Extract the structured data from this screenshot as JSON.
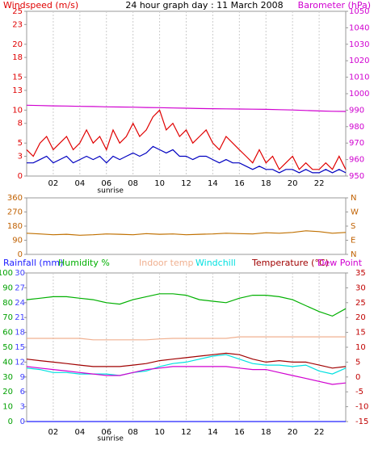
{
  "chart_data": [
    {
      "type": "line",
      "title": "24 hour graph day : 11 March 2008",
      "ylabel": "Windspeed (m/s)",
      "y2label": "Barometer (hPa)",
      "annotation": "sunrise",
      "ycolor": "#e00000",
      "y2color": "#d000d0",
      "xlim": [
        0,
        24
      ],
      "xticks": [
        {
          "value": 2,
          "label": "02"
        },
        {
          "value": 4,
          "label": "04"
        },
        {
          "value": 6,
          "label": "06"
        },
        {
          "value": 8,
          "label": "08"
        },
        {
          "value": 10,
          "label": "10"
        },
        {
          "value": 12,
          "label": "12"
        },
        {
          "value": 14,
          "label": "14"
        },
        {
          "value": 16,
          "label": "16"
        },
        {
          "value": 18,
          "label": "18"
        },
        {
          "value": 20,
          "label": "20"
        },
        {
          "value": 22,
          "label": "22"
        }
      ],
      "ylim": [
        0,
        25
      ],
      "yticks": [
        0,
        3,
        5,
        8,
        10,
        13,
        15,
        18,
        20,
        23,
        25
      ],
      "y2lim": [
        950,
        1050
      ],
      "y2ticks": [
        950,
        960,
        970,
        980,
        990,
        1000,
        1010,
        1020,
        1030,
        1040,
        1050
      ],
      "grid": true,
      "series": [
        {
          "color": "#e00000",
          "x": [
            0,
            0.5,
            1,
            1.5,
            2,
            2.5,
            3,
            3.5,
            4,
            4.5,
            5,
            5.5,
            6,
            6.5,
            7,
            7.5,
            8,
            8.5,
            9,
            9.5,
            10,
            10.5,
            11,
            11.5,
            12,
            12.5,
            13,
            13.5,
            14,
            14.5,
            15,
            15.5,
            16,
            16.5,
            17,
            17.5,
            18,
            18.5,
            19,
            19.5,
            20,
            20.5,
            21,
            21.5,
            22,
            22.5,
            23,
            23.5,
            24
          ],
          "values": [
            4,
            3,
            5,
            6,
            4,
            5,
            6,
            4,
            5,
            7,
            5,
            6,
            4,
            7,
            5,
            6,
            8,
            6,
            7,
            9,
            10,
            7,
            8,
            6,
            7,
            5,
            6,
            7,
            5,
            4,
            6,
            5,
            4,
            3,
            2,
            4,
            2,
            3,
            1,
            2,
            3,
            1,
            2,
            1,
            1,
            2,
            1,
            3,
            1
          ]
        },
        {
          "color": "#0000c0",
          "x": [
            0,
            0.5,
            1,
            1.5,
            2,
            2.5,
            3,
            3.5,
            4,
            4.5,
            5,
            5.5,
            6,
            6.5,
            7,
            7.5,
            8,
            8.5,
            9,
            9.5,
            10,
            10.5,
            11,
            11.5,
            12,
            12.5,
            13,
            13.5,
            14,
            14.5,
            15,
            15.5,
            16,
            16.5,
            17,
            17.5,
            18,
            18.5,
            19,
            19.5,
            20,
            20.5,
            21,
            21.5,
            22,
            22.5,
            23,
            23.5,
            24
          ],
          "values": [
            2,
            2,
            2.5,
            3,
            2,
            2.5,
            3,
            2,
            2.5,
            3,
            2.5,
            3,
            2,
            3,
            2.5,
            3,
            3.5,
            3,
            3.5,
            4.5,
            4,
            3.5,
            4,
            3,
            3,
            2.5,
            3,
            3,
            2.5,
            2,
            2.5,
            2,
            2,
            1.5,
            1,
            1.5,
            1,
            1,
            0.5,
            1,
            1,
            0.5,
            1,
            0.5,
            0.5,
            1,
            0.5,
            1,
            0.5
          ]
        },
        {
          "color": "#d000d0",
          "axis": "y2",
          "x": [
            0,
            1,
            2,
            3,
            4,
            5,
            6,
            7,
            8,
            9,
            10,
            11,
            12,
            13,
            14,
            15,
            16,
            17,
            18,
            19,
            20,
            21,
            22,
            23,
            24
          ],
          "values": [
            993,
            992.8,
            992.6,
            992.5,
            992.3,
            992.2,
            992,
            991.9,
            991.8,
            991.6,
            991.5,
            991.3,
            991.2,
            991,
            990.9,
            990.8,
            990.7,
            990.6,
            990.5,
            990.3,
            990.1,
            989.8,
            989.5,
            989.3,
            989.2
          ]
        }
      ]
    },
    {
      "type": "line",
      "ycolor": "#c06000",
      "y2color": "#c06000",
      "xlim": [
        0,
        24
      ],
      "ylim": [
        0,
        360
      ],
      "yticks": [
        0,
        90,
        180,
        270,
        360
      ],
      "y2lim": [
        0,
        360
      ],
      "y2ticks": [
        {
          "value": 0,
          "label": "N"
        },
        {
          "value": 90,
          "label": "E"
        },
        {
          "value": 180,
          "label": "S"
        },
        {
          "value": 270,
          "label": "W"
        },
        {
          "value": 360,
          "label": "N"
        }
      ],
      "series": [
        {
          "color": "#c07000",
          "x": [
            0,
            1,
            2,
            3,
            4,
            5,
            6,
            7,
            8,
            9,
            10,
            11,
            12,
            13,
            14,
            15,
            16,
            17,
            18,
            19,
            20,
            21,
            22,
            23,
            24
          ],
          "values": [
            135,
            130,
            125,
            128,
            122,
            125,
            130,
            128,
            125,
            132,
            128,
            130,
            125,
            128,
            130,
            135,
            132,
            130,
            138,
            135,
            140,
            150,
            145,
            135,
            140
          ]
        }
      ]
    },
    {
      "type": "line",
      "annotation": "sunrise",
      "ycolor": "#00a000",
      "y2color": "#c00000",
      "y3color": "#4040ff",
      "xlim": [
        0,
        24
      ],
      "xticks": [
        {
          "value": 2,
          "label": "02"
        },
        {
          "value": 4,
          "label": "04"
        },
        {
          "value": 6,
          "label": "06"
        },
        {
          "value": 8,
          "label": "08"
        },
        {
          "value": 10,
          "label": "10"
        },
        {
          "value": 12,
          "label": "12"
        },
        {
          "value": 14,
          "label": "14"
        },
        {
          "value": 16,
          "label": "16"
        },
        {
          "value": 18,
          "label": "18"
        },
        {
          "value": 20,
          "label": "20"
        },
        {
          "value": 22,
          "label": "22"
        }
      ],
      "ylim": [
        0,
        100
      ],
      "yticks": [
        0,
        10,
        20,
        30,
        40,
        50,
        60,
        70,
        80,
        90,
        100
      ],
      "y2lim": [
        -15,
        35
      ],
      "y2ticks": [
        -15,
        -10,
        -5,
        0,
        5,
        10,
        15,
        20,
        25,
        30,
        35
      ],
      "y3lim": [
        0,
        30
      ],
      "y3ticks": [
        0,
        3,
        6,
        9,
        12,
        15,
        18,
        21,
        24,
        27,
        30
      ],
      "grid": true,
      "series": [
        {
          "name": "Rainfall (mm)",
          "color": "#2020ff",
          "axis": "y3",
          "x": [
            0,
            1,
            2,
            3,
            4,
            5,
            6,
            7,
            8,
            9,
            10,
            11,
            12,
            13,
            14,
            15,
            16,
            17,
            18,
            19,
            20,
            21,
            22,
            23,
            24
          ],
          "values": [
            0,
            0,
            0,
            0,
            0,
            0,
            0,
            0,
            0,
            0,
            0,
            0,
            0,
            0,
            0,
            0,
            0,
            0,
            0,
            0,
            0,
            0,
            0,
            0,
            0
          ]
        },
        {
          "name": "Humidity %",
          "color": "#00b000",
          "x": [
            0,
            1,
            2,
            3,
            4,
            5,
            6,
            7,
            8,
            9,
            10,
            11,
            12,
            13,
            14,
            15,
            16,
            17,
            18,
            19,
            20,
            21,
            22,
            23,
            24
          ],
          "values": [
            82,
            83,
            84,
            84,
            83,
            82,
            80,
            79,
            82,
            84,
            86,
            86,
            85,
            82,
            81,
            80,
            83,
            85,
            85,
            84,
            82,
            78,
            74,
            71,
            76
          ]
        },
        {
          "name": "Indoor temp",
          "color": "#f0b090",
          "axis": "y2",
          "x": [
            0,
            1,
            2,
            3,
            4,
            5,
            6,
            7,
            8,
            9,
            10,
            11,
            12,
            13,
            14,
            15,
            16,
            17,
            18,
            19,
            20,
            21,
            22,
            23,
            24
          ],
          "values": [
            13,
            13,
            13,
            13,
            13,
            12.5,
            12.5,
            12.5,
            12.5,
            12.5,
            12.8,
            13,
            13,
            13,
            13,
            13,
            13.5,
            13.5,
            13.5,
            13.5,
            13.5,
            13.5,
            13.5,
            13.5,
            13.5
          ]
        },
        {
          "name": "Windchill",
          "color": "#00e0e0",
          "axis": "y2",
          "x": [
            0,
            1,
            2,
            3,
            4,
            5,
            6,
            7,
            8,
            9,
            10,
            11,
            12,
            13,
            14,
            15,
            16,
            17,
            18,
            19,
            20,
            21,
            22,
            23,
            24
          ],
          "values": [
            3,
            2.5,
            1.5,
            1.5,
            1,
            1,
            1,
            0.5,
            1.5,
            2,
            3.5,
            4.5,
            5,
            6,
            7,
            7.5,
            6,
            4.5,
            4,
            4,
            3.5,
            4,
            2,
            1,
            3
          ]
        },
        {
          "name": "Temperature (°C)",
          "color": "#a00000",
          "axis": "y2",
          "x": [
            0,
            1,
            2,
            3,
            4,
            5,
            6,
            7,
            8,
            9,
            10,
            11,
            12,
            13,
            14,
            15,
            16,
            17,
            18,
            19,
            20,
            21,
            22,
            23,
            24
          ],
          "values": [
            6,
            5.5,
            5,
            4.5,
            4,
            3.5,
            3.5,
            3.5,
            4,
            4.5,
            5.5,
            6,
            6.5,
            7,
            7.5,
            8,
            7.5,
            6,
            5,
            5.5,
            5,
            5,
            4,
            3,
            3.5
          ]
        },
        {
          "name": "Dew Point",
          "color": "#d000d0",
          "axis": "y2",
          "x": [
            0,
            1,
            2,
            3,
            4,
            5,
            6,
            7,
            8,
            9,
            10,
            11,
            12,
            13,
            14,
            15,
            16,
            17,
            18,
            19,
            20,
            21,
            22,
            23,
            24
          ],
          "values": [
            3.5,
            3,
            2.5,
            2,
            1.5,
            1,
            0.5,
            0.5,
            1.5,
            2.5,
            3,
            3.5,
            3.5,
            3.5,
            3.5,
            3.5,
            3,
            2.5,
            2.5,
            1.5,
            0.5,
            -0.5,
            -1.5,
            -2.5,
            -2
          ]
        }
      ]
    }
  ]
}
